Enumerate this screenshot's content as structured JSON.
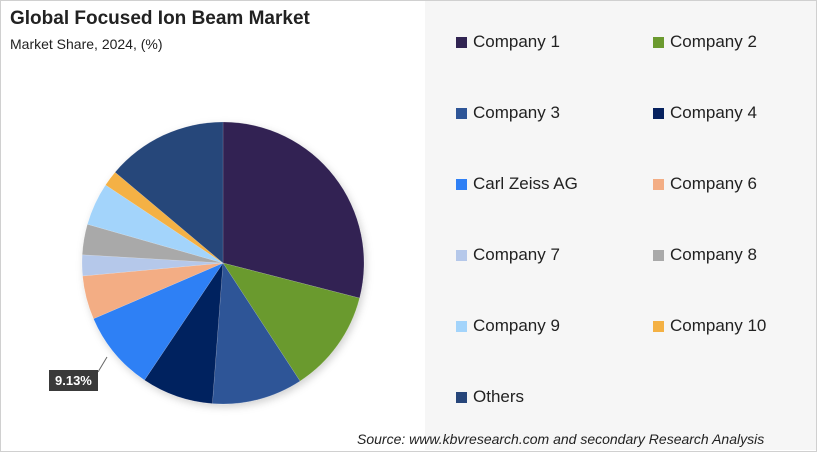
{
  "chart_data": {
    "type": "pie",
    "title": "Global Focused Ion Beam Market",
    "subtitle": "Market Share, 2024, (%)",
    "legend_position": "right",
    "slices": [
      {
        "name": "Company 1",
        "value": 29.0,
        "color": "#312452"
      },
      {
        "name": "Company 2",
        "value": 11.8,
        "color": "#6b9a2f"
      },
      {
        "name": "Company 3",
        "value": 10.4,
        "color": "#2e5597"
      },
      {
        "name": "Company 4",
        "value": 8.2,
        "color": "#06215e"
      },
      {
        "name": "Carl Zeiss AG",
        "value": 9.13,
        "color": "#2f80f5"
      },
      {
        "name": "Company 6",
        "value": 5.0,
        "color": "#f3ad84"
      },
      {
        "name": "Company 7",
        "value": 2.4,
        "color": "#b5c8ea"
      },
      {
        "name": "Company 8",
        "value": 3.5,
        "color": "#a9a9a9"
      },
      {
        "name": "Company 9",
        "value": 4.9,
        "color": "#a3d4fb"
      },
      {
        "name": "Company 10",
        "value": 1.8,
        "color": "#f4b144"
      },
      {
        "name": "Others",
        "value": 13.87,
        "color": "#27467a"
      }
    ],
    "data_labels": [
      {
        "slice": "Carl Zeiss AG",
        "text": "9.13%"
      }
    ]
  },
  "source": "Source: www.kbvresearch.com and secondary Research Analysis"
}
